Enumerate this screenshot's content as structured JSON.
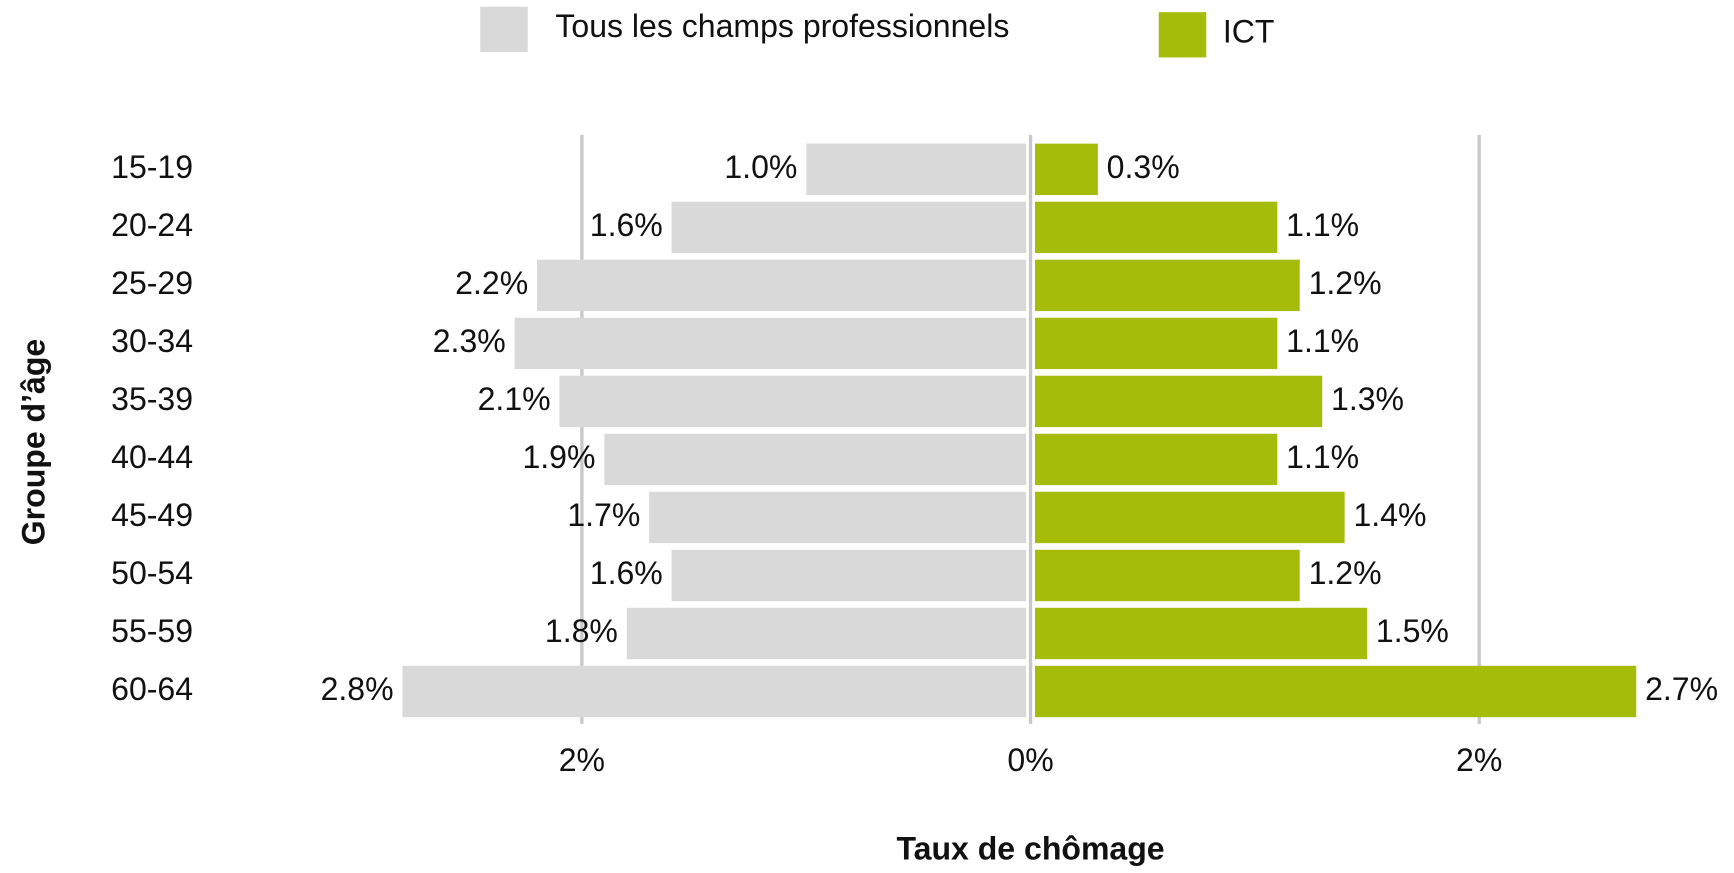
{
  "chart_data": {
    "type": "butterfly",
    "y_label": "Groupe d’âge",
    "x_label": "Taux de chômage",
    "categories": [
      "15-19",
      "20-24",
      "25-29",
      "30-34",
      "35-39",
      "40-44",
      "45-49",
      "50-54",
      "55-59",
      "60-64"
    ],
    "series": [
      {
        "name": "Tous les champs professionnels",
        "color": "#d9d9d9",
        "side": "left",
        "values": [
          1.0,
          1.6,
          2.2,
          2.3,
          2.1,
          1.9,
          1.7,
          1.6,
          1.8,
          2.8
        ],
        "value_labels": [
          "1.0%",
          "1.6%",
          "2.2%",
          "2.3%",
          "2.1%",
          "1.9%",
          "1.7%",
          "1.6%",
          "1.8%",
          "2.8%"
        ]
      },
      {
        "name": "ICT",
        "color": "#a5bd0a",
        "side": "right",
        "values": [
          0.3,
          1.1,
          1.2,
          1.1,
          1.3,
          1.1,
          1.4,
          1.2,
          1.5,
          2.7
        ],
        "value_labels": [
          "0.3%",
          "1.1%",
          "1.2%",
          "1.1%",
          "1.3%",
          "1.1%",
          "1.4%",
          "1.2%",
          "1.5%",
          "2.7%"
        ]
      }
    ],
    "xlim": [
      -3,
      3
    ],
    "xticks": [
      {
        "value": -2,
        "label": "2%"
      },
      {
        "value": 0,
        "label": "0%"
      },
      {
        "value": 2,
        "label": "2%"
      }
    ],
    "grid": true
  }
}
